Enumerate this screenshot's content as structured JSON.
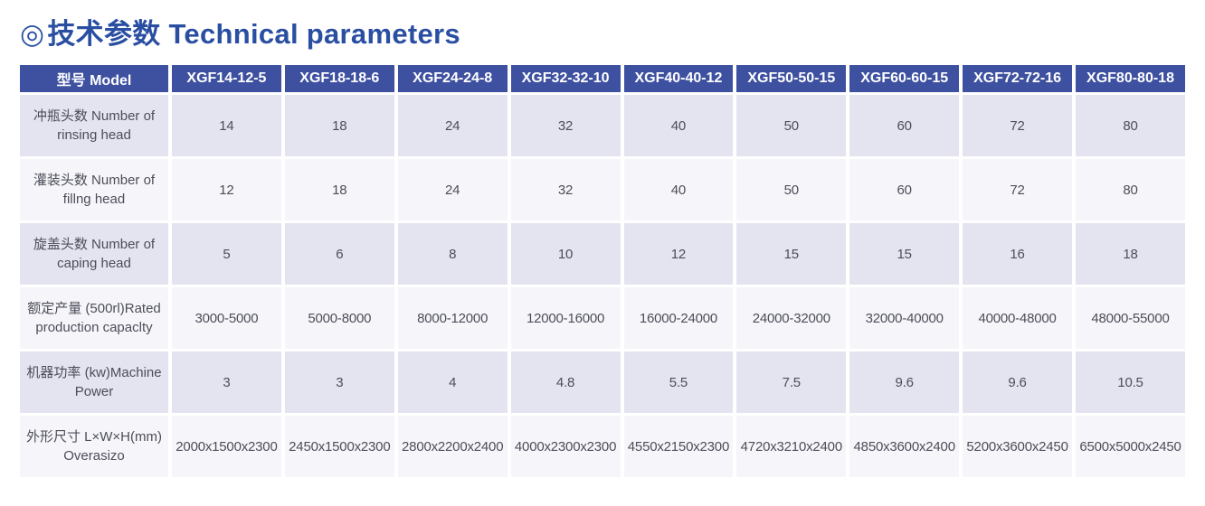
{
  "title": {
    "bullet": "◎",
    "text": "技术参数 Technical parameters"
  },
  "table": {
    "header": [
      "型号 Model",
      "XGF14-12-5",
      "XGF18-18-6",
      "XGF24-24-8",
      "XGF32-32-10",
      "XGF40-40-12",
      "XGF50-50-15",
      "XGF60-60-15",
      "XGF72-72-16",
      "XGF80-80-18"
    ],
    "rows": [
      {
        "label": "冲瓶头数 Number of rinsing head",
        "values": [
          "14",
          "18",
          "24",
          "32",
          "40",
          "50",
          "60",
          "72",
          "80"
        ]
      },
      {
        "label": "灌装头数 Number of fillng head",
        "values": [
          "12",
          "18",
          "24",
          "32",
          "40",
          "50",
          "60",
          "72",
          "80"
        ]
      },
      {
        "label": "旋盖头数 Number of caping head",
        "values": [
          "5",
          "6",
          "8",
          "10",
          "12",
          "15",
          "15",
          "16",
          "18"
        ]
      },
      {
        "label": "额定产量 (500rl)Rated production capaclty",
        "values": [
          "3000-5000",
          "5000-8000",
          "8000-12000",
          "12000-16000",
          "16000-24000",
          "24000-32000",
          "32000-40000",
          "40000-48000",
          "48000-55000"
        ]
      },
      {
        "label": "机器功率 (kw)Machine Power",
        "values": [
          "3",
          "3",
          "4",
          "4.8",
          "5.5",
          "7.5",
          "9.6",
          "9.6",
          "10.5"
        ]
      },
      {
        "label": "外形尺寸 L×W×H(mm) Overasizo",
        "values": [
          "2000x1500x2300",
          "2450x1500x2300",
          "2800x2200x2400",
          "4000x2300x2300",
          "4550x2150x2300",
          "4720x3210x2400",
          "4850x3600x2400",
          "5200x3600x2450",
          "6500x5000x2450"
        ]
      }
    ]
  },
  "colors": {
    "title_text": "#2a4fa2",
    "header_bg": "#3e51a0",
    "header_text": "#ffffff",
    "row_odd_bg": "#e4e4f1",
    "row_even_bg": "#f6f6fa",
    "cell_text": "#4d4d5a"
  }
}
